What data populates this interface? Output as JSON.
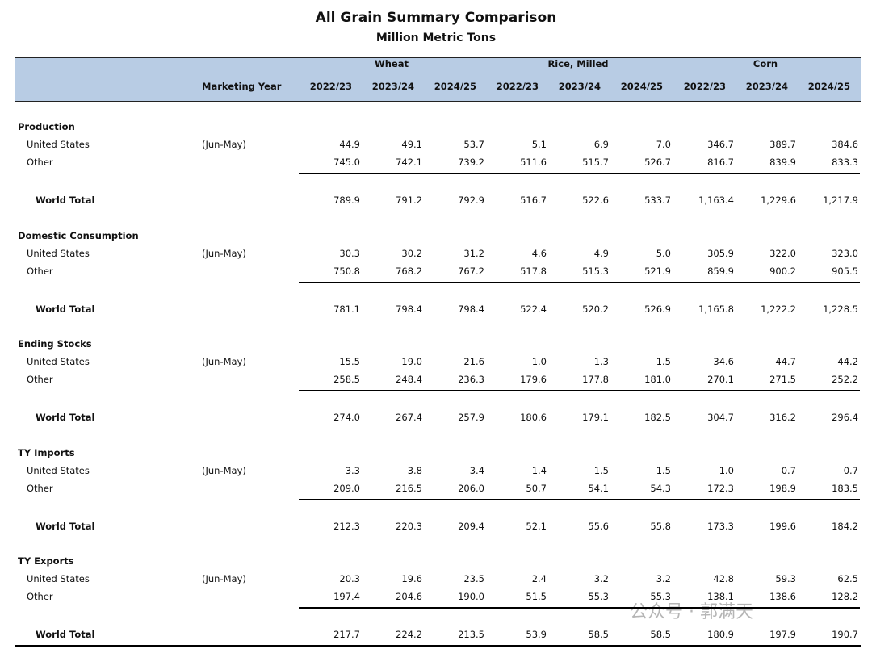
{
  "header": {
    "title": "All Grain Summary Comparison",
    "subtitle": "Million Metric Tons"
  },
  "table": {
    "groups": [
      "Wheat",
      "Rice, Milled",
      "Corn"
    ],
    "columns": [
      "Marketing Year",
      "2022/23",
      "2023/24",
      "2024/25",
      "2022/23",
      "2023/24",
      "2024/25",
      "2022/23",
      "2023/24",
      "2024/25"
    ],
    "sections": [
      {
        "title": "Production",
        "rows": [
          {
            "label": "United States",
            "year": "(Jun-May)",
            "values": [
              "44.9",
              "49.1",
              "53.7",
              "5.1",
              "6.9",
              "7.0",
              "346.7",
              "389.7",
              "384.6"
            ]
          },
          {
            "label": "Other",
            "values": [
              "745.0",
              "742.1",
              "739.2",
              "511.6",
              "515.7",
              "526.7",
              "816.7",
              "839.9",
              "833.3"
            ]
          },
          {
            "label": "World Total",
            "values": [
              "789.9",
              "791.2",
              "792.9",
              "516.7",
              "522.6",
              "533.7",
              "1,163.4",
              "1,229.6",
              "1,217.9"
            ]
          }
        ]
      },
      {
        "title": "Domestic Consumption",
        "rows": [
          {
            "label": "United States",
            "year": "(Jun-May)",
            "values": [
              "30.3",
              "30.2",
              "31.2",
              "4.6",
              "4.9",
              "5.0",
              "305.9",
              "322.0",
              "323.0"
            ]
          },
          {
            "label": "Other",
            "values": [
              "750.8",
              "768.2",
              "767.2",
              "517.8",
              "515.3",
              "521.9",
              "859.9",
              "900.2",
              "905.5"
            ]
          },
          {
            "label": "World Total",
            "values": [
              "781.1",
              "798.4",
              "798.4",
              "522.4",
              "520.2",
              "526.9",
              "1,165.8",
              "1,222.2",
              "1,228.5"
            ]
          }
        ]
      },
      {
        "title": "Ending Stocks",
        "rows": [
          {
            "label": "United States",
            "year": "(Jun-May)",
            "values": [
              "15.5",
              "19.0",
              "21.6",
              "1.0",
              "1.3",
              "1.5",
              "34.6",
              "44.7",
              "44.2"
            ]
          },
          {
            "label": "Other",
            "values": [
              "258.5",
              "248.4",
              "236.3",
              "179.6",
              "177.8",
              "181.0",
              "270.1",
              "271.5",
              "252.2"
            ]
          },
          {
            "label": "World Total",
            "values": [
              "274.0",
              "267.4",
              "257.9",
              "180.6",
              "179.1",
              "182.5",
              "304.7",
              "316.2",
              "296.4"
            ]
          }
        ]
      },
      {
        "title": "TY Imports",
        "rows": [
          {
            "label": "United States",
            "year": "(Jun-May)",
            "values": [
              "3.3",
              "3.8",
              "3.4",
              "1.4",
              "1.5",
              "1.5",
              "1.0",
              "0.7",
              "0.7"
            ]
          },
          {
            "label": "Other",
            "values": [
              "209.0",
              "216.5",
              "206.0",
              "50.7",
              "54.1",
              "54.3",
              "172.3",
              "198.9",
              "183.5"
            ]
          },
          {
            "label": "World Total",
            "values": [
              "212.3",
              "220.3",
              "209.4",
              "52.1",
              "55.6",
              "55.8",
              "173.3",
              "199.6",
              "184.2"
            ]
          }
        ]
      },
      {
        "title": "TY Exports",
        "rows": [
          {
            "label": "United States",
            "year": "(Jun-May)",
            "values": [
              "20.3",
              "19.6",
              "23.5",
              "2.4",
              "3.2",
              "3.2",
              "42.8",
              "59.3",
              "62.5"
            ]
          },
          {
            "label": "Other",
            "values": [
              "197.4",
              "204.6",
              "190.0",
              "51.5",
              "55.3",
              "55.3",
              "138.1",
              "138.6",
              "128.2"
            ]
          },
          {
            "label": "World Total",
            "values": [
              "217.7",
              "224.2",
              "213.5",
              "53.9",
              "58.5",
              "58.5",
              "180.9",
              "197.9",
              "190.7"
            ]
          }
        ]
      }
    ]
  },
  "watermark": "公众号 · 郭满天"
}
